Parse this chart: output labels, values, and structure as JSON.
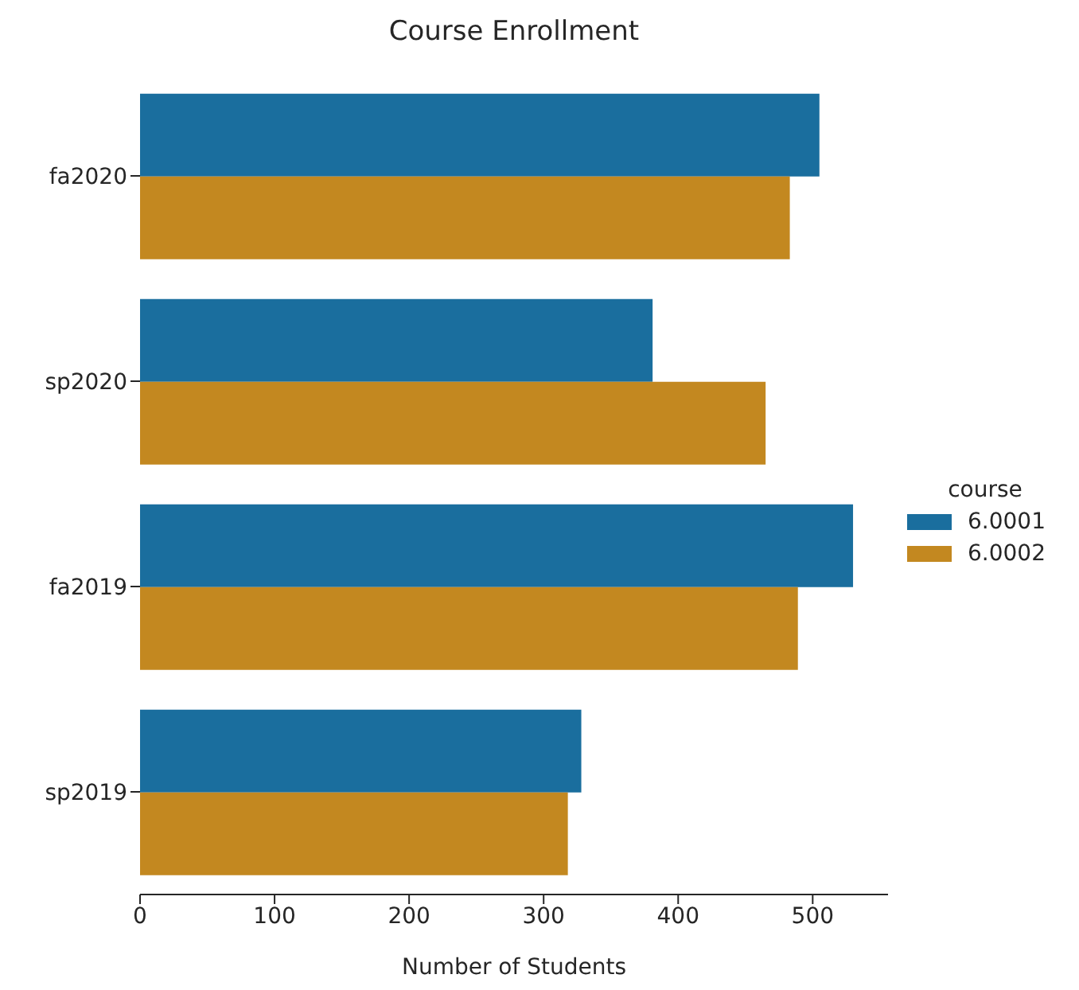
{
  "chart_data": {
    "type": "bar",
    "orientation": "horizontal",
    "title": "Course Enrollment",
    "xlabel": "Number of Students",
    "legend_title": "course",
    "legend": "right",
    "grid": false,
    "categories": [
      "fa2020",
      "sp2020",
      "fa2019",
      "sp2019"
    ],
    "series": [
      {
        "name": "6.0001",
        "color": "#1a6e9e",
        "values": [
          505,
          381,
          530,
          328
        ]
      },
      {
        "name": "6.0002",
        "color": "#c38820",
        "values": [
          483,
          465,
          489,
          318
        ]
      }
    ],
    "xlim": [
      0,
      556
    ],
    "xticks": [
      0,
      100,
      200,
      300,
      400,
      500
    ]
  }
}
